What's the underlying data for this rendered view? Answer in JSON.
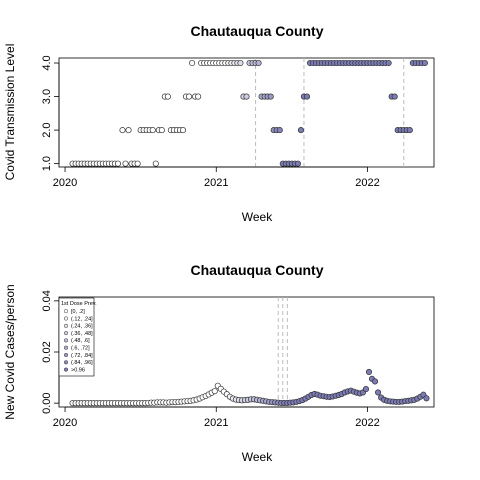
{
  "colors": {
    "low": "#ffffff",
    "high": "#7b7bb5",
    "stroke": "#333333",
    "vline": "#bbbbbb"
  },
  "chart_data": [
    {
      "type": "scatter",
      "title": "Chautauqua County",
      "xlabel": "Week",
      "ylabel": "Covid Transmission Level",
      "xlim": [
        2019.96,
        2022.44
      ],
      "ylim": [
        0.9,
        4.15
      ],
      "xticks": [
        2020,
        2021,
        2022
      ],
      "xtick_labels": [
        "2020",
        "2021",
        "2022"
      ],
      "yticks": [
        1,
        2,
        3,
        4
      ],
      "ytick_labels": [
        "1.0",
        "2.0",
        "3.0",
        "4.0"
      ],
      "vlines": [
        2021.26,
        2021.58,
        2022.24
      ],
      "color_start": 2021.05,
      "color_full": 2021.45,
      "points": [
        [
          2020.05,
          1
        ],
        [
          2020.07,
          1
        ],
        [
          2020.09,
          1
        ],
        [
          2020.11,
          1
        ],
        [
          2020.13,
          1
        ],
        [
          2020.15,
          1
        ],
        [
          2020.17,
          1
        ],
        [
          2020.19,
          1
        ],
        [
          2020.21,
          1
        ],
        [
          2020.23,
          1
        ],
        [
          2020.25,
          1
        ],
        [
          2020.27,
          1
        ],
        [
          2020.29,
          1
        ],
        [
          2020.31,
          1
        ],
        [
          2020.33,
          1
        ],
        [
          2020.35,
          1
        ],
        [
          2020.38,
          2
        ],
        [
          2020.4,
          1
        ],
        [
          2020.42,
          2
        ],
        [
          2020.44,
          1
        ],
        [
          2020.46,
          1
        ],
        [
          2020.48,
          1
        ],
        [
          2020.5,
          2
        ],
        [
          2020.52,
          2
        ],
        [
          2020.54,
          2
        ],
        [
          2020.56,
          2
        ],
        [
          2020.58,
          2
        ],
        [
          2020.6,
          1
        ],
        [
          2020.62,
          2
        ],
        [
          2020.64,
          2
        ],
        [
          2020.66,
          3
        ],
        [
          2020.68,
          3
        ],
        [
          2020.7,
          2
        ],
        [
          2020.72,
          2
        ],
        [
          2020.74,
          2
        ],
        [
          2020.76,
          2
        ],
        [
          2020.78,
          2
        ],
        [
          2020.8,
          3
        ],
        [
          2020.82,
          3
        ],
        [
          2020.84,
          4
        ],
        [
          2020.86,
          3
        ],
        [
          2020.88,
          3
        ],
        [
          2020.9,
          4
        ],
        [
          2020.92,
          4
        ],
        [
          2020.94,
          4
        ],
        [
          2020.96,
          4
        ],
        [
          2020.98,
          4
        ],
        [
          2021.0,
          4
        ],
        [
          2021.02,
          4
        ],
        [
          2021.04,
          4
        ],
        [
          2021.06,
          4
        ],
        [
          2021.08,
          4
        ],
        [
          2021.1,
          4
        ],
        [
          2021.12,
          4
        ],
        [
          2021.14,
          4
        ],
        [
          2021.16,
          4
        ],
        [
          2021.18,
          3
        ],
        [
          2021.2,
          3
        ],
        [
          2021.22,
          4
        ],
        [
          2021.24,
          4
        ],
        [
          2021.26,
          4
        ],
        [
          2021.28,
          4
        ],
        [
          2021.3,
          3
        ],
        [
          2021.32,
          3
        ],
        [
          2021.34,
          3
        ],
        [
          2021.36,
          3
        ],
        [
          2021.38,
          2
        ],
        [
          2021.4,
          2
        ],
        [
          2021.42,
          2
        ],
        [
          2021.44,
          1
        ],
        [
          2021.46,
          1
        ],
        [
          2021.48,
          1
        ],
        [
          2021.5,
          1
        ],
        [
          2021.52,
          1
        ],
        [
          2021.54,
          1
        ],
        [
          2021.56,
          2
        ],
        [
          2021.58,
          3
        ],
        [
          2021.6,
          3
        ],
        [
          2021.62,
          4
        ],
        [
          2021.64,
          4
        ],
        [
          2021.66,
          4
        ],
        [
          2021.68,
          4
        ],
        [
          2021.7,
          4
        ],
        [
          2021.72,
          4
        ],
        [
          2021.74,
          4
        ],
        [
          2021.76,
          4
        ],
        [
          2021.78,
          4
        ],
        [
          2021.8,
          4
        ],
        [
          2021.82,
          4
        ],
        [
          2021.84,
          4
        ],
        [
          2021.86,
          4
        ],
        [
          2021.88,
          4
        ],
        [
          2021.9,
          4
        ],
        [
          2021.92,
          4
        ],
        [
          2021.94,
          4
        ],
        [
          2021.96,
          4
        ],
        [
          2021.98,
          4
        ],
        [
          2022.0,
          4
        ],
        [
          2022.02,
          4
        ],
        [
          2022.04,
          4
        ],
        [
          2022.06,
          4
        ],
        [
          2022.08,
          4
        ],
        [
          2022.1,
          4
        ],
        [
          2022.12,
          4
        ],
        [
          2022.14,
          4
        ],
        [
          2022.16,
          3
        ],
        [
          2022.18,
          3
        ],
        [
          2022.2,
          2
        ],
        [
          2022.22,
          2
        ],
        [
          2022.24,
          2
        ],
        [
          2022.26,
          2
        ],
        [
          2022.28,
          2
        ],
        [
          2022.3,
          4
        ],
        [
          2022.32,
          4
        ],
        [
          2022.34,
          4
        ],
        [
          2022.36,
          4
        ],
        [
          2022.38,
          4
        ]
      ]
    },
    {
      "type": "scatter",
      "title": "Chautauqua County",
      "xlabel": "Week",
      "ylabel": "New Covid Cases/person",
      "xlim": [
        2019.96,
        2022.44
      ],
      "ylim": [
        -0.0015,
        0.0415
      ],
      "xticks": [
        2020,
        2021,
        2022
      ],
      "xtick_labels": [
        "2020",
        "2021",
        "2022"
      ],
      "yticks": [
        0,
        0.02,
        0.04
      ],
      "ytick_labels": [
        "0.00",
        "0.02",
        "0.04"
      ],
      "vlines": [
        2021.41,
        2021.44,
        2021.47
      ],
      "color_start": 2021.05,
      "color_full": 2021.45,
      "legend": {
        "title": "1st Dose Prev.",
        "position": "top-left",
        "items": [
          "[0, .2]",
          "(.12, .24]",
          "(.24, .36]",
          "(.36, .48]",
          "(.48, .6]",
          "(.6, .72]",
          "(.72, .84]",
          "(.84, .96]",
          ">0.96"
        ]
      },
      "points": [
        [
          2020.05,
          0
        ],
        [
          2020.07,
          0
        ],
        [
          2020.09,
          0
        ],
        [
          2020.11,
          0
        ],
        [
          2020.13,
          0
        ],
        [
          2020.15,
          0
        ],
        [
          2020.17,
          0
        ],
        [
          2020.19,
          0
        ],
        [
          2020.21,
          0
        ],
        [
          2020.23,
          0
        ],
        [
          2020.25,
          0
        ],
        [
          2020.27,
          0
        ],
        [
          2020.29,
          0
        ],
        [
          2020.31,
          0
        ],
        [
          2020.33,
          0
        ],
        [
          2020.35,
          0
        ],
        [
          2020.37,
          0
        ],
        [
          2020.39,
          0
        ],
        [
          2020.41,
          0
        ],
        [
          2020.43,
          0
        ],
        [
          2020.45,
          0
        ],
        [
          2020.47,
          0
        ],
        [
          2020.49,
          0
        ],
        [
          2020.51,
          0
        ],
        [
          2020.53,
          0
        ],
        [
          2020.55,
          0.0001
        ],
        [
          2020.57,
          0.0002
        ],
        [
          2020.59,
          0.0002
        ],
        [
          2020.61,
          0.0003
        ],
        [
          2020.63,
          0.0003
        ],
        [
          2020.65,
          0.0003
        ],
        [
          2020.67,
          0.0002
        ],
        [
          2020.69,
          0.0003
        ],
        [
          2020.71,
          0.0004
        ],
        [
          2020.73,
          0.0004
        ],
        [
          2020.75,
          0.0005
        ],
        [
          2020.77,
          0.0006
        ],
        [
          2020.79,
          0.0007
        ],
        [
          2020.81,
          0.0008
        ],
        [
          2020.83,
          0.0009
        ],
        [
          2020.85,
          0.0011
        ],
        [
          2020.87,
          0.0014
        ],
        [
          2020.89,
          0.0018
        ],
        [
          2020.91,
          0.0023
        ],
        [
          2020.93,
          0.0028
        ],
        [
          2020.95,
          0.0034
        ],
        [
          2020.97,
          0.0041
        ],
        [
          2020.99,
          0.0047
        ],
        [
          2021.01,
          0.0068
        ],
        [
          2021.03,
          0.0056
        ],
        [
          2021.05,
          0.0045
        ],
        [
          2021.07,
          0.0035
        ],
        [
          2021.09,
          0.0025
        ],
        [
          2021.11,
          0.0018
        ],
        [
          2021.13,
          0.0014
        ],
        [
          2021.15,
          0.0012
        ],
        [
          2021.17,
          0.0011
        ],
        [
          2021.19,
          0.0012
        ],
        [
          2021.21,
          0.0013
        ],
        [
          2021.23,
          0.0015
        ],
        [
          2021.25,
          0.0015
        ],
        [
          2021.27,
          0.0013
        ],
        [
          2021.29,
          0.0011
        ],
        [
          2021.31,
          0.0009
        ],
        [
          2021.33,
          0.0007
        ],
        [
          2021.35,
          0.0005
        ],
        [
          2021.37,
          0.0004
        ],
        [
          2021.39,
          0.0003
        ],
        [
          2021.41,
          0.0002
        ],
        [
          2021.43,
          0.0001
        ],
        [
          2021.45,
          0.0001
        ],
        [
          2021.47,
          0.0001
        ],
        [
          2021.49,
          0.0002
        ],
        [
          2021.51,
          0.0003
        ],
        [
          2021.53,
          0.0005
        ],
        [
          2021.55,
          0.0008
        ],
        [
          2021.57,
          0.0012
        ],
        [
          2021.59,
          0.0018
        ],
        [
          2021.61,
          0.0025
        ],
        [
          2021.63,
          0.0032
        ],
        [
          2021.65,
          0.0036
        ],
        [
          2021.67,
          0.0033
        ],
        [
          2021.69,
          0.0029
        ],
        [
          2021.71,
          0.0027
        ],
        [
          2021.73,
          0.0025
        ],
        [
          2021.75,
          0.0024
        ],
        [
          2021.77,
          0.0026
        ],
        [
          2021.79,
          0.0029
        ],
        [
          2021.81,
          0.0032
        ],
        [
          2021.83,
          0.0036
        ],
        [
          2021.85,
          0.0042
        ],
        [
          2021.87,
          0.0046
        ],
        [
          2021.89,
          0.0049
        ],
        [
          2021.91,
          0.0045
        ],
        [
          2021.93,
          0.0041
        ],
        [
          2021.95,
          0.0038
        ],
        [
          2021.97,
          0.0042
        ],
        [
          2021.99,
          0.0055
        ],
        [
          2022.01,
          0.0122
        ],
        [
          2022.03,
          0.0095
        ],
        [
          2022.05,
          0.0085
        ],
        [
          2022.07,
          0.0042
        ],
        [
          2022.09,
          0.0022
        ],
        [
          2022.11,
          0.0013
        ],
        [
          2022.13,
          0.0009
        ],
        [
          2022.15,
          0.0007
        ],
        [
          2022.17,
          0.0006
        ],
        [
          2022.19,
          0.0005
        ],
        [
          2022.21,
          0.0005
        ],
        [
          2022.23,
          0.0006
        ],
        [
          2022.25,
          0.0008
        ],
        [
          2022.27,
          0.0009
        ],
        [
          2022.29,
          0.0011
        ],
        [
          2022.31,
          0.0013
        ],
        [
          2022.33,
          0.0018
        ],
        [
          2022.35,
          0.0025
        ],
        [
          2022.37,
          0.0033
        ],
        [
          2022.39,
          0.0019
        ]
      ]
    }
  ]
}
